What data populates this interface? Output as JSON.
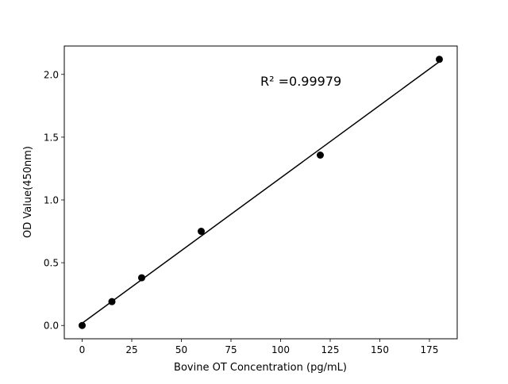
{
  "chart_data": {
    "type": "scatter",
    "title": "",
    "xlabel": "Bovine OT Concentration (pg/mL)",
    "ylabel": "OD Value(450nm)",
    "xlim": [
      -9,
      189
    ],
    "ylim": [
      -0.106,
      2.226
    ],
    "xticks": [
      0,
      25,
      50,
      75,
      100,
      125,
      150,
      175
    ],
    "yticks": [
      0.0,
      0.5,
      1.0,
      1.5,
      2.0
    ],
    "xtick_labels": [
      "0",
      "25",
      "50",
      "75",
      "100",
      "125",
      "150",
      "175"
    ],
    "ytick_labels": [
      "0.0",
      "0.5",
      "1.0",
      "1.5",
      "2.0"
    ],
    "grid": false,
    "points": {
      "x": [
        0,
        15,
        30,
        60,
        120,
        180
      ],
      "y": [
        0.0,
        0.19,
        0.38,
        0.75,
        1.357,
        2.12
      ],
      "color": "#000000"
    },
    "fit_line": {
      "x": [
        0,
        180
      ],
      "y": [
        0.018,
        2.101
      ],
      "color": "#000000"
    },
    "annotation": "R² =0.99979"
  }
}
